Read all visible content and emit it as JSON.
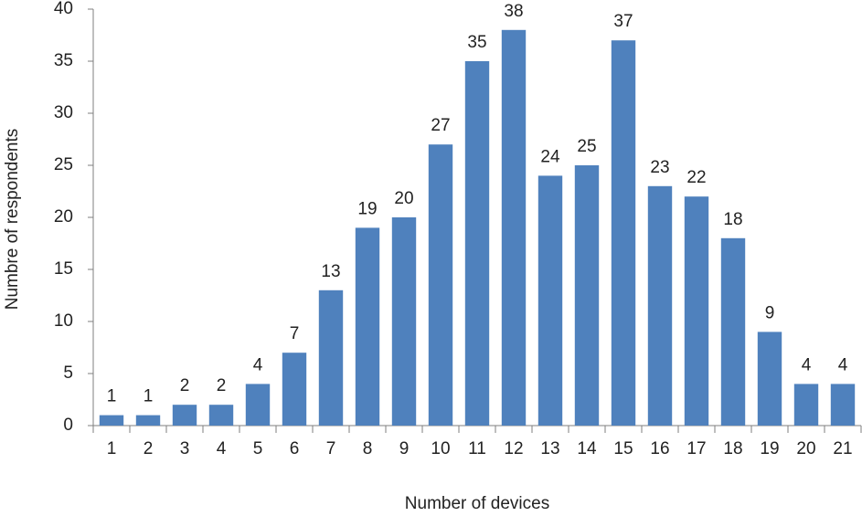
{
  "chart_data": {
    "type": "bar",
    "x_label": "Number of devices",
    "y_label": "Numbre of respondents",
    "categories": [
      "1",
      "2",
      "3",
      "4",
      "5",
      "6",
      "7",
      "8",
      "9",
      "10",
      "11",
      "12",
      "13",
      "14",
      "15",
      "16",
      "17",
      "18",
      "19",
      "20",
      "21"
    ],
    "values": [
      1,
      1,
      2,
      2,
      4,
      7,
      13,
      19,
      20,
      27,
      35,
      38,
      24,
      25,
      37,
      23,
      22,
      18,
      9,
      4,
      4
    ],
    "color": "#4f81bd",
    "ylim": [
      0,
      40
    ],
    "yticks": [
      0,
      5,
      10,
      15,
      20,
      25,
      30,
      35,
      40
    ],
    "grid": false
  }
}
